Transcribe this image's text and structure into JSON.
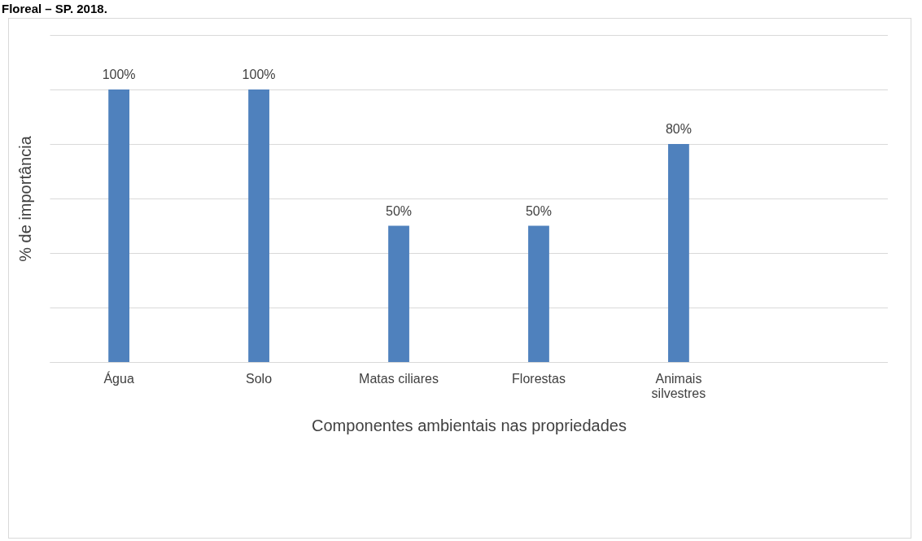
{
  "chart_data": {
    "type": "bar",
    "title": "Floreal – SP. 2018.",
    "xlabel": "Componentes ambientais nas propriedades",
    "ylabel": "% de importância",
    "categories": [
      "Água",
      "Solo",
      "Matas ciliares",
      "Florestas",
      "Animais silvestres",
      null
    ],
    "values": [
      100,
      100,
      50,
      50,
      80,
      null
    ],
    "color": "#4f81bd",
    "value_labels": [
      "100%",
      "100%",
      "50%",
      "50%",
      "80%",
      null
    ],
    "ylim": [
      0,
      120
    ],
    "yticks": [
      {
        "value": 0,
        "label": null
      },
      {
        "value": 20,
        "label": null
      },
      {
        "value": 40,
        "label": null
      },
      {
        "value": 60,
        "label": null
      },
      {
        "value": 80,
        "label": null
      },
      {
        "value": 100,
        "label": null
      },
      {
        "value": 120,
        "label": null
      }
    ],
    "grid": "y",
    "tick_labels": "x"
  }
}
